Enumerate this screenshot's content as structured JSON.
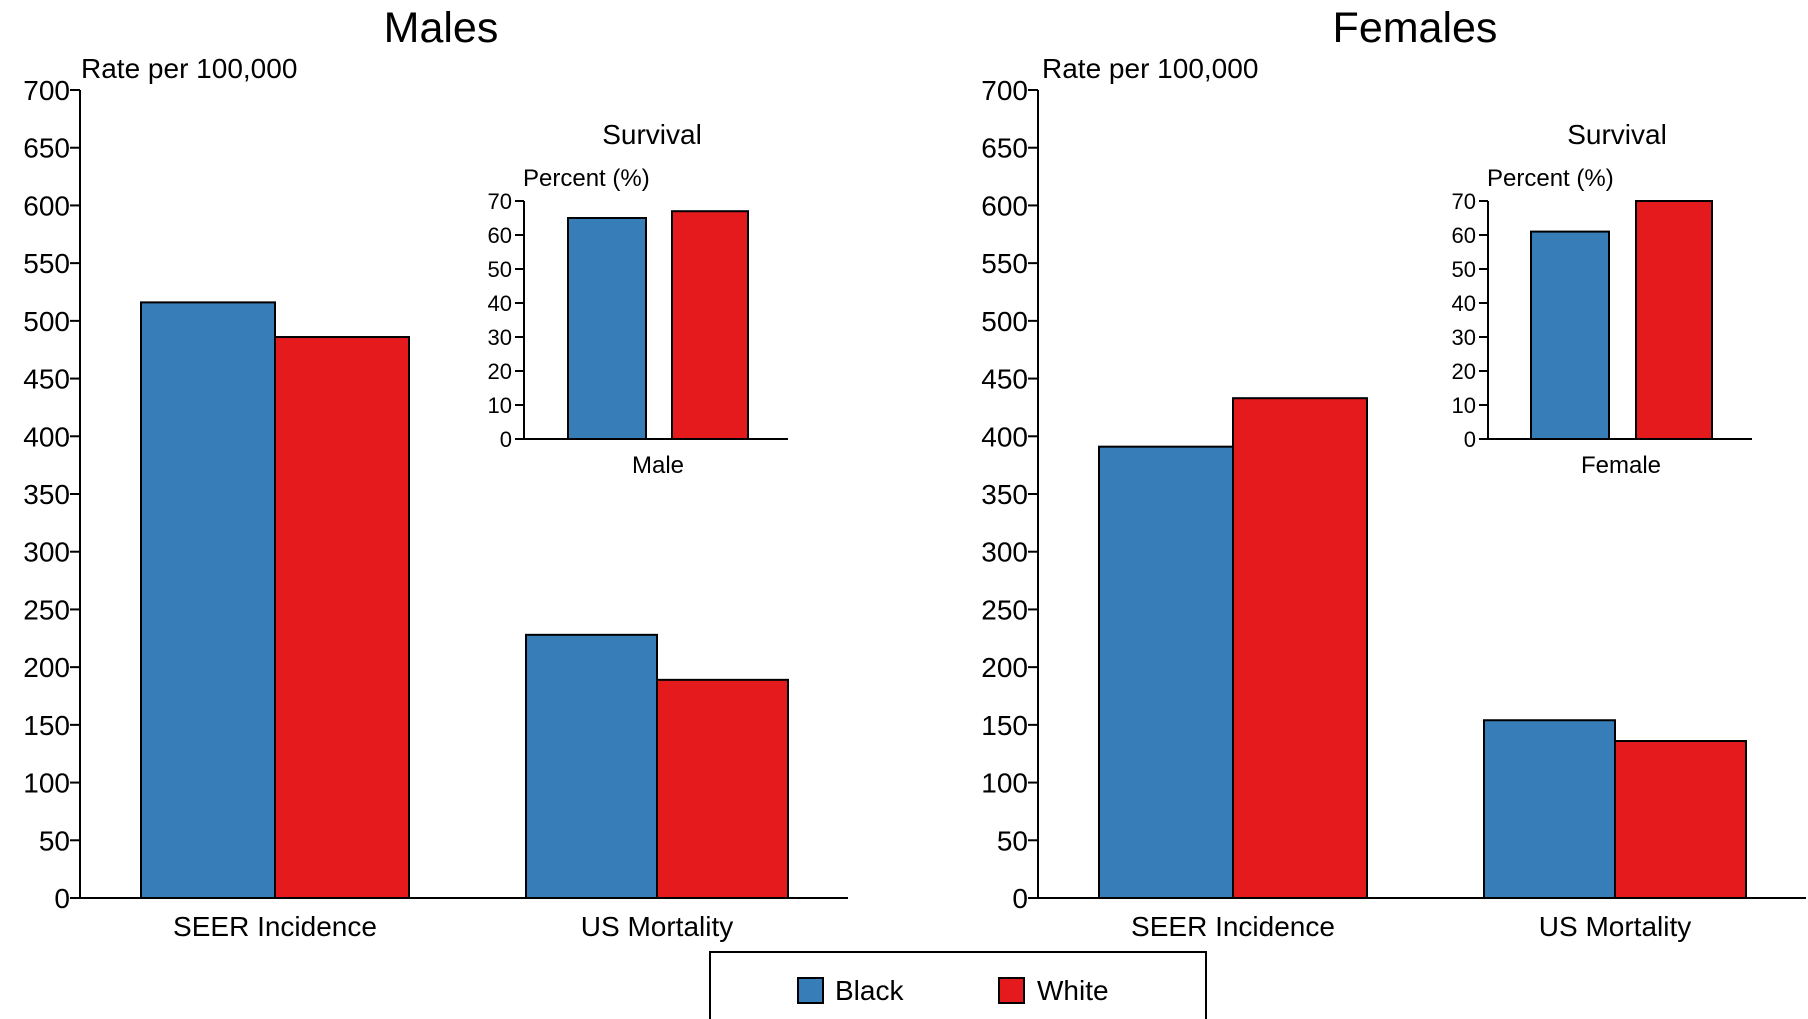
{
  "legend": {
    "items": [
      {
        "label": "Black",
        "color": "#377eb8"
      },
      {
        "label": "White",
        "color": "#e41a1c"
      }
    ]
  },
  "chart_data": [
    {
      "type": "bar",
      "title": "Males",
      "ylabel": "Rate per 100,000",
      "categories": [
        "SEER Incidence",
        "US Mortality"
      ],
      "ylim": [
        0,
        700
      ],
      "yticks": [
        0,
        50,
        100,
        150,
        200,
        250,
        300,
        350,
        400,
        450,
        500,
        550,
        600,
        650,
        700
      ],
      "series": [
        {
          "name": "Black",
          "color": "#377eb8",
          "values": [
            516,
            228
          ]
        },
        {
          "name": "White",
          "color": "#e41a1c",
          "values": [
            486,
            189
          ]
        }
      ],
      "inset": {
        "type": "bar",
        "title": "Survival",
        "ylabel": "Percent (%)",
        "xlabel": "Male",
        "ylim": [
          0,
          70
        ],
        "yticks": [
          0,
          10,
          20,
          30,
          40,
          50,
          60,
          70
        ],
        "series": [
          {
            "name": "Black",
            "color": "#377eb8",
            "values": [
              65
            ]
          },
          {
            "name": "White",
            "color": "#e41a1c",
            "values": [
              67
            ]
          }
        ]
      }
    },
    {
      "type": "bar",
      "title": "Females",
      "ylabel": "Rate per 100,000",
      "categories": [
        "SEER Incidence",
        "US Mortality"
      ],
      "ylim": [
        0,
        700
      ],
      "yticks": [
        0,
        50,
        100,
        150,
        200,
        250,
        300,
        350,
        400,
        450,
        500,
        550,
        600,
        650,
        700
      ],
      "series": [
        {
          "name": "Black",
          "color": "#377eb8",
          "values": [
            391,
            154
          ]
        },
        {
          "name": "White",
          "color": "#e41a1c",
          "values": [
            433,
            136
          ]
        }
      ],
      "inset": {
        "type": "bar",
        "title": "Survival",
        "ylabel": "Percent (%)",
        "xlabel": "Female",
        "ylim": [
          0,
          70
        ],
        "yticks": [
          0,
          10,
          20,
          30,
          40,
          50,
          60,
          70
        ],
        "series": [
          {
            "name": "Black",
            "color": "#377eb8",
            "values": [
              61
            ]
          },
          {
            "name": "White",
            "color": "#e41a1c",
            "values": [
              70
            ]
          }
        ]
      }
    }
  ]
}
